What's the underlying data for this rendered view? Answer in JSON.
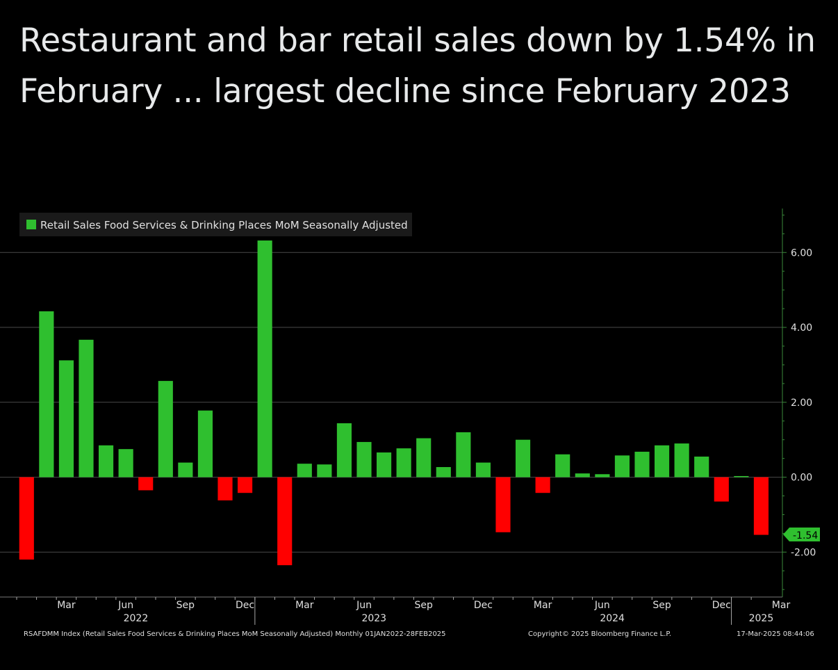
{
  "post": {
    "headline": "Restaurant and bar retail sales down by 1.54% in February ... largest decline since February 2023"
  },
  "colors": {
    "positive": "#2fbf2f",
    "negative": "#ff0000",
    "last_value_badge": "#2fbf2f",
    "axis": "#3a8a3a",
    "grid": "#4a4a4a",
    "text": "#e0e0e0"
  },
  "chart_data": {
    "type": "bar",
    "legend": [
      "Retail Sales Food Services & Drinking Places MoM Seasonally Adjusted"
    ],
    "legend_position": "top-left",
    "x": [
      "2022-01",
      "2022-02",
      "2022-03",
      "2022-04",
      "2022-05",
      "2022-06",
      "2022-07",
      "2022-08",
      "2022-09",
      "2022-10",
      "2022-11",
      "2022-12",
      "2023-01",
      "2023-02",
      "2023-03",
      "2023-04",
      "2023-05",
      "2023-06",
      "2023-07",
      "2023-08",
      "2023-09",
      "2023-10",
      "2023-11",
      "2023-12",
      "2024-01",
      "2024-02",
      "2024-03",
      "2024-04",
      "2024-05",
      "2024-06",
      "2024-07",
      "2024-08",
      "2024-09",
      "2024-10",
      "2024-11",
      "2024-12",
      "2025-01",
      "2025-02"
    ],
    "series": [
      {
        "name": "Retail Sales Food Services & Drinking Places MoM Seasonally Adjusted",
        "values": [
          -2.2,
          4.43,
          3.12,
          3.67,
          0.85,
          0.75,
          -0.35,
          2.57,
          0.39,
          1.78,
          -0.62,
          -0.42,
          6.32,
          -2.35,
          0.36,
          0.34,
          1.44,
          0.94,
          0.66,
          0.77,
          1.04,
          0.27,
          1.2,
          0.39,
          -1.47,
          1.0,
          -0.42,
          0.61,
          0.1,
          0.08,
          0.58,
          0.68,
          0.85,
          0.9,
          0.55,
          -0.65,
          0.03,
          -1.54
        ]
      }
    ],
    "last_value_label": "-1.54",
    "ylim": [
      -3.2,
      7.1
    ],
    "y_axis_side": "right",
    "y_ticks": [
      6,
      4,
      2,
      0,
      -2
    ],
    "y_tick_labels": [
      "6.00",
      "4.00",
      "2.00",
      "0.00",
      "-2.00"
    ],
    "x_month_labels": [
      {
        "month_index": 2,
        "label": "Mar"
      },
      {
        "month_index": 5,
        "label": "Jun"
      },
      {
        "month_index": 8,
        "label": "Sep"
      },
      {
        "month_index": 11,
        "label": "Dec"
      },
      {
        "month_index": 14,
        "label": "Mar"
      },
      {
        "month_index": 17,
        "label": "Jun"
      },
      {
        "month_index": 20,
        "label": "Sep"
      },
      {
        "month_index": 23,
        "label": "Dec"
      },
      {
        "month_index": 26,
        "label": "Mar"
      },
      {
        "month_index": 29,
        "label": "Jun"
      },
      {
        "month_index": 32,
        "label": "Sep"
      },
      {
        "month_index": 35,
        "label": "Dec"
      },
      {
        "month_index": 38,
        "label": "Mar"
      }
    ],
    "x_year_labels": [
      {
        "month_index": 5.5,
        "label": "2022"
      },
      {
        "month_index": 17.5,
        "label": "2023"
      },
      {
        "month_index": 29.5,
        "label": "2024"
      },
      {
        "month_index": 37,
        "label": "2025"
      }
    ],
    "year_dividers": [
      11.5,
      35.5
    ],
    "grid": true
  },
  "footer": {
    "source": "RSAFDMM Index (Retail Sales Food Services & Drinking Places MoM Seasonally Adjusted) Monthly 01JAN2022-28FEB2025",
    "copyright": "Copyright© 2025 Bloomberg Finance L.P.",
    "timestamp": "17-Mar-2025 08:44:06"
  }
}
